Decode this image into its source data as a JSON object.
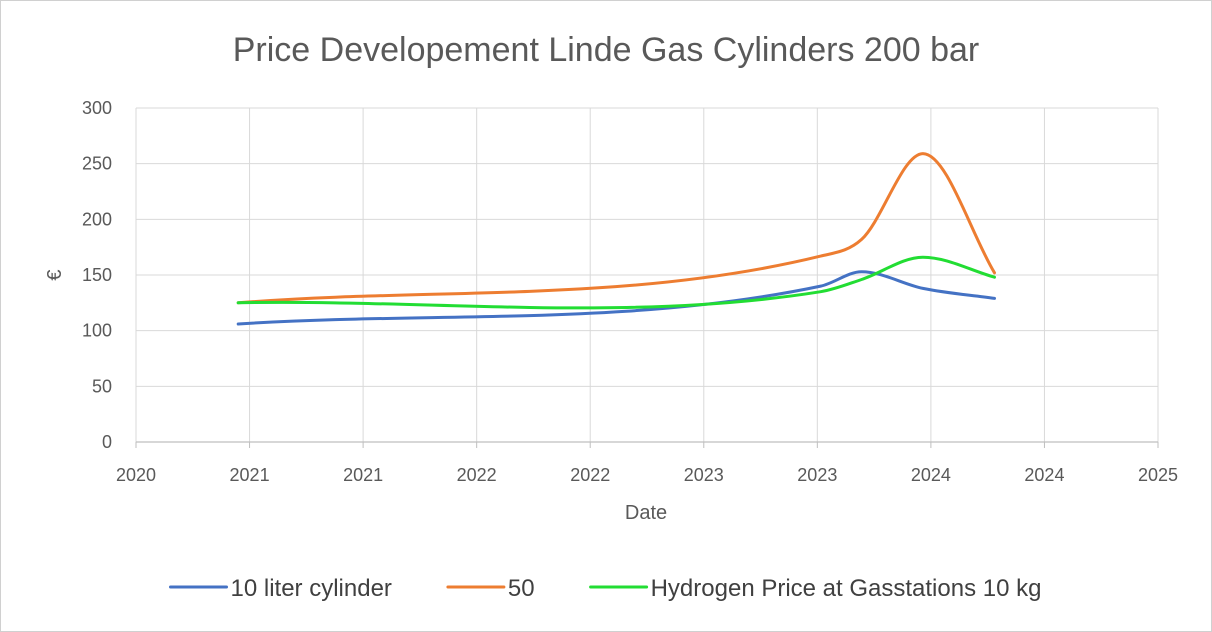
{
  "chart_data": {
    "type": "line",
    "title": "Price Developement  Linde Gas Cylinders 200 bar",
    "xlabel": "Date",
    "ylabel": "€",
    "xlim": [
      2020,
      2025
    ],
    "ylim": [
      0,
      300
    ],
    "x_tick_labels": [
      "2020",
      "2021",
      "2021",
      "2022",
      "2022",
      "2023",
      "2023",
      "2024",
      "2024",
      "2025"
    ],
    "y_ticks": [
      0,
      50,
      100,
      150,
      200,
      250,
      300
    ],
    "grid": true,
    "legend_position": "bottom",
    "smooth": true,
    "series": [
      {
        "name": "10 liter cylinder",
        "color": "#4472C4",
        "x": [
          2020.5,
          2023.35,
          2023.55,
          2023.85,
          2024.2
        ],
        "y": [
          106,
          140,
          153,
          138,
          129
        ]
      },
      {
        "name": "50",
        "color": "#ED7D31",
        "x": [
          2020.5,
          2023.35,
          2023.55,
          2023.85,
          2024.2
        ],
        "y": [
          125,
          167,
          182,
          259,
          152
        ]
      },
      {
        "name": "Hydrogen Price at Gasstations 10 kg",
        "color": "#22DD33",
        "x": [
          2020.5,
          2023.35,
          2023.55,
          2023.85,
          2024.2
        ],
        "y": [
          125,
          135,
          146,
          166,
          148
        ]
      }
    ]
  }
}
